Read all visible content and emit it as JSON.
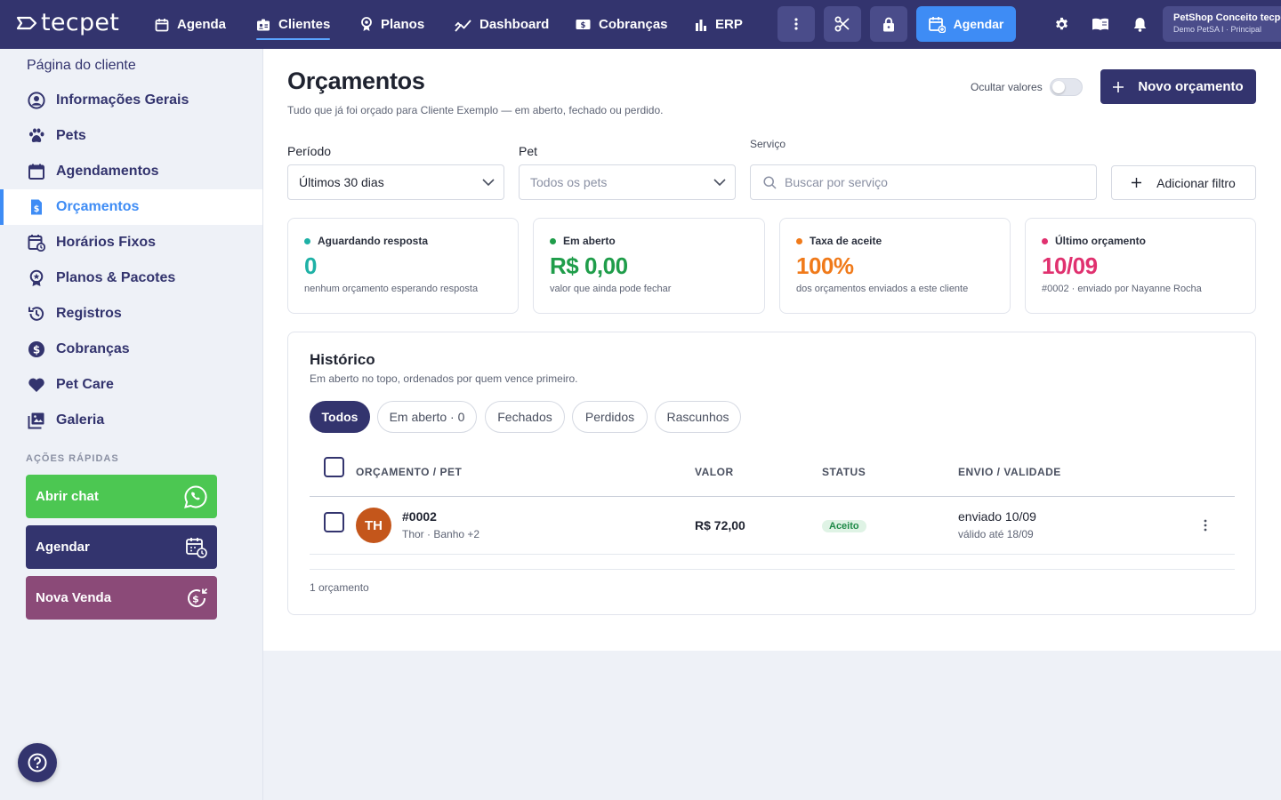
{
  "app": {
    "logo_text": "tecpet"
  },
  "topnav": {
    "items": [
      {
        "label": "Agenda",
        "icon": "calendar-icon"
      },
      {
        "label": "Clientes",
        "icon": "clients-icon",
        "active": true
      },
      {
        "label": "Planos",
        "icon": "plans-badge-icon"
      },
      {
        "label": "Dashboard",
        "icon": "chart-line-icon"
      },
      {
        "label": "Cobranças",
        "icon": "money-icon"
      },
      {
        "label": "ERP",
        "icon": "bar-chart-icon"
      }
    ],
    "agendar_label": "Agendar",
    "account_name": "PetShop Conceito tecpet",
    "account_sub": "Demo PetSA I · Principal"
  },
  "sidebar": {
    "title": "Página do cliente",
    "items": [
      {
        "label": "Informações Gerais",
        "icon": "user-circle-icon"
      },
      {
        "label": "Pets",
        "icon": "paw-icon"
      },
      {
        "label": "Agendamentos",
        "icon": "calendar-icon"
      },
      {
        "label": "Orçamentos",
        "icon": "receipt-icon",
        "active": true
      },
      {
        "label": "Horários Fixos",
        "icon": "calendar-clock-icon"
      },
      {
        "label": "Planos & Pacotes",
        "icon": "award-icon"
      },
      {
        "label": "Registros",
        "icon": "history-icon"
      },
      {
        "label": "Cobranças",
        "icon": "dollar-circle-icon"
      },
      {
        "label": "Pet Care",
        "icon": "heart-icon"
      },
      {
        "label": "Galeria",
        "icon": "gallery-icon"
      }
    ],
    "quick_actions_title": "AÇÕES RÁPIDAS",
    "quick_actions": [
      {
        "label": "Abrir chat",
        "icon": "whatsapp-icon",
        "color": "#4cc752"
      },
      {
        "label": "Agendar",
        "icon": "calendar-add-icon",
        "color": "#33346e"
      },
      {
        "label": "Nova Venda",
        "icon": "sale-icon",
        "color": "#8b4a78"
      }
    ]
  },
  "page": {
    "title": "Orçamentos",
    "subtitle": "Tudo que já foi orçado para Cliente Exemplo — em aberto, fechado ou perdido.",
    "toggle_label": "Ocultar valores",
    "toggle_on": false,
    "new_button": "Novo orçamento"
  },
  "filters": {
    "period_label": "Período",
    "period_value": "Últimos 30 dias",
    "pet_label": "Pet",
    "pet_placeholder": "Todos os pets",
    "service_label": "Serviço",
    "service_placeholder": "Buscar por serviço",
    "add_filter": "Adicionar filtro"
  },
  "cards": [
    {
      "label": "Aguardando resposta",
      "value": "0",
      "sub": "nenhum orçamento esperando resposta",
      "color": "#1eb1a6"
    },
    {
      "label": "Em aberto",
      "value": "R$ 0,00",
      "sub": "valor que ainda pode fechar",
      "color": "#1f9d4a"
    },
    {
      "label": "Taxa de aceite",
      "value": "100%",
      "sub": "dos orçamentos enviados a este cliente",
      "color": "#f07a1a"
    },
    {
      "label": "Último orçamento",
      "value": "10/09",
      "sub": "#0002 · enviado por Nayanne Rocha",
      "color": "#e0316f"
    }
  ],
  "history": {
    "title": "Histórico",
    "subtitle": "Em aberto no topo, ordenados por quem vence primeiro.",
    "chips": [
      "Todos",
      "Em aberto · 0",
      "Fechados",
      "Perdidos",
      "Rascunhos"
    ],
    "active_chip": 0,
    "columns": [
      "ORÇAMENTO / PET",
      "VALOR",
      "STATUS",
      "ENVIO / VALIDADE"
    ],
    "rows": [
      {
        "initials": "TH",
        "id": "#0002",
        "pet": "Thor · Banho +2",
        "value": "R$ 72,00",
        "status": "Aceito",
        "sent": "enviado 10/09",
        "valid": "válido até 18/09"
      }
    ],
    "count_text": "1 orçamento"
  }
}
